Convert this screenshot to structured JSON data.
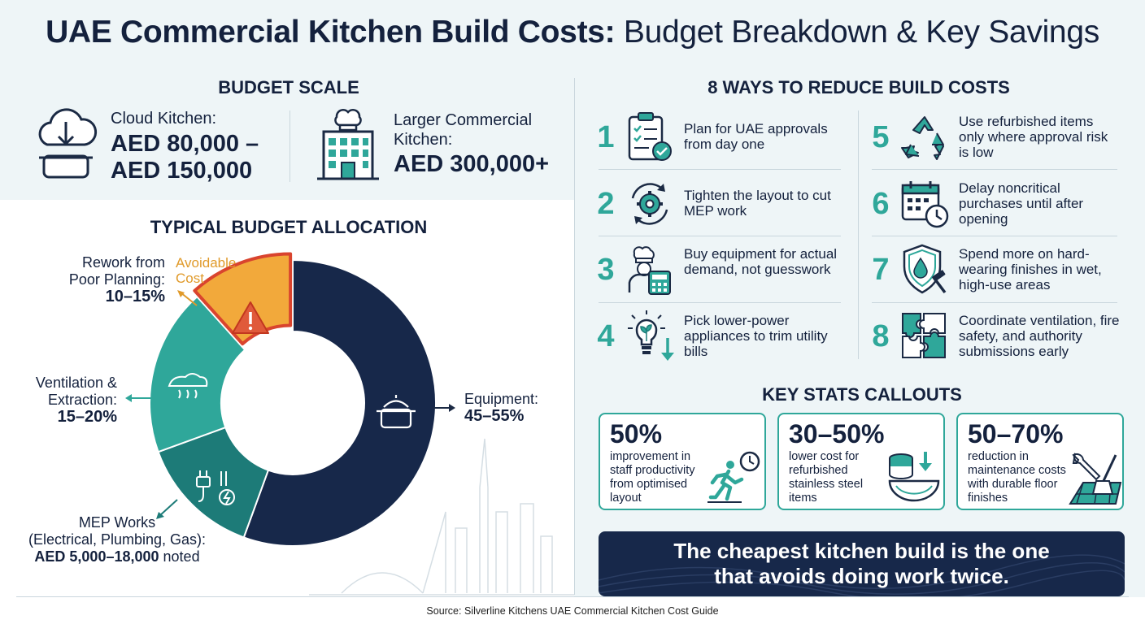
{
  "title": {
    "strong": "UAE Commercial Kitchen Build Costs:",
    "light": "Budget Breakdown & Key Savings"
  },
  "budget_scale": {
    "heading": "BUDGET SCALE",
    "cloud": {
      "label": "Cloud Kitchen:",
      "amount_1": "AED 80,000 –",
      "amount_2": "AED 150,000",
      "icon": "cloud-kitchen-icon"
    },
    "large": {
      "label_1": "Larger Commercial",
      "label_2": "Kitchen:",
      "amount": "AED 300,000+",
      "icon": "building-icon"
    }
  },
  "allocation": {
    "heading": "TYPICAL BUDGET ALLOCATION",
    "rework": {
      "label_1": "Rework from",
      "label_2": "Poor Planning:",
      "value": "10–15%",
      "tag_1": "Avoidable",
      "tag_2": "Cost"
    },
    "ventilation": {
      "label_1": "Ventilation &",
      "label_2": "Extraction:",
      "value": "15–20%"
    },
    "equipment": {
      "label": "Equipment:",
      "value": "45–55%"
    },
    "mep": {
      "label_1": "MEP Works",
      "label_2": "(Electrical, Plumbing, Gas):",
      "value": "AED 5,000–18,000",
      "suffix": " noted"
    }
  },
  "ways": {
    "heading": "8 WAYS TO REDUCE BUILD COSTS",
    "items": [
      {
        "num": "1",
        "text": "Plan for UAE approvals from day one",
        "icon": "clipboard-check-icon"
      },
      {
        "num": "2",
        "text": "Tighten the layout to cut MEP work",
        "icon": "gear-cycle-icon"
      },
      {
        "num": "3",
        "text": "Buy equipment for actual demand, not guesswork",
        "icon": "chef-calculator-icon"
      },
      {
        "num": "4",
        "text": "Pick lower-power appliances to trim utility bills",
        "icon": "eco-bulb-icon"
      },
      {
        "num": "5",
        "text": "Use refurbished items only where approval risk is low",
        "icon": "recycle-icon"
      },
      {
        "num": "6",
        "text": "Delay noncritical purchases until after opening",
        "icon": "calendar-clock-icon"
      },
      {
        "num": "7",
        "text": "Spend more on hard-wearing finishes in wet, high-use areas",
        "icon": "shield-drop-icon"
      },
      {
        "num": "8",
        "text": "Coordinate ventilation, fire safety, and authority submissions early",
        "icon": "puzzle-icon"
      }
    ]
  },
  "stats": {
    "heading": "KEY STATS CALLOUTS",
    "items": [
      {
        "value": "50%",
        "text": "improvement in staff productivity from optimised layout",
        "icon": "runner-clock-icon"
      },
      {
        "value": "30–50%",
        "text": "lower cost for refurbished stainless steel items",
        "icon": "steel-bowl-icon"
      },
      {
        "value": "50–70%",
        "text": "reduction in maintenance costs with durable floor finishes",
        "icon": "floor-tools-icon"
      }
    ]
  },
  "banner": {
    "line_1": "The cheapest kitchen build is the one",
    "line_2": "that avoids doing work twice."
  },
  "source": "Source: Silverline Kitchens UAE Commercial Kitchen Cost Guide",
  "colors": {
    "navy": "#17284a",
    "teal": "#2fa79a",
    "dark_teal": "#1d7b78",
    "orange": "#f2a93b",
    "red": "#d9442e"
  }
}
